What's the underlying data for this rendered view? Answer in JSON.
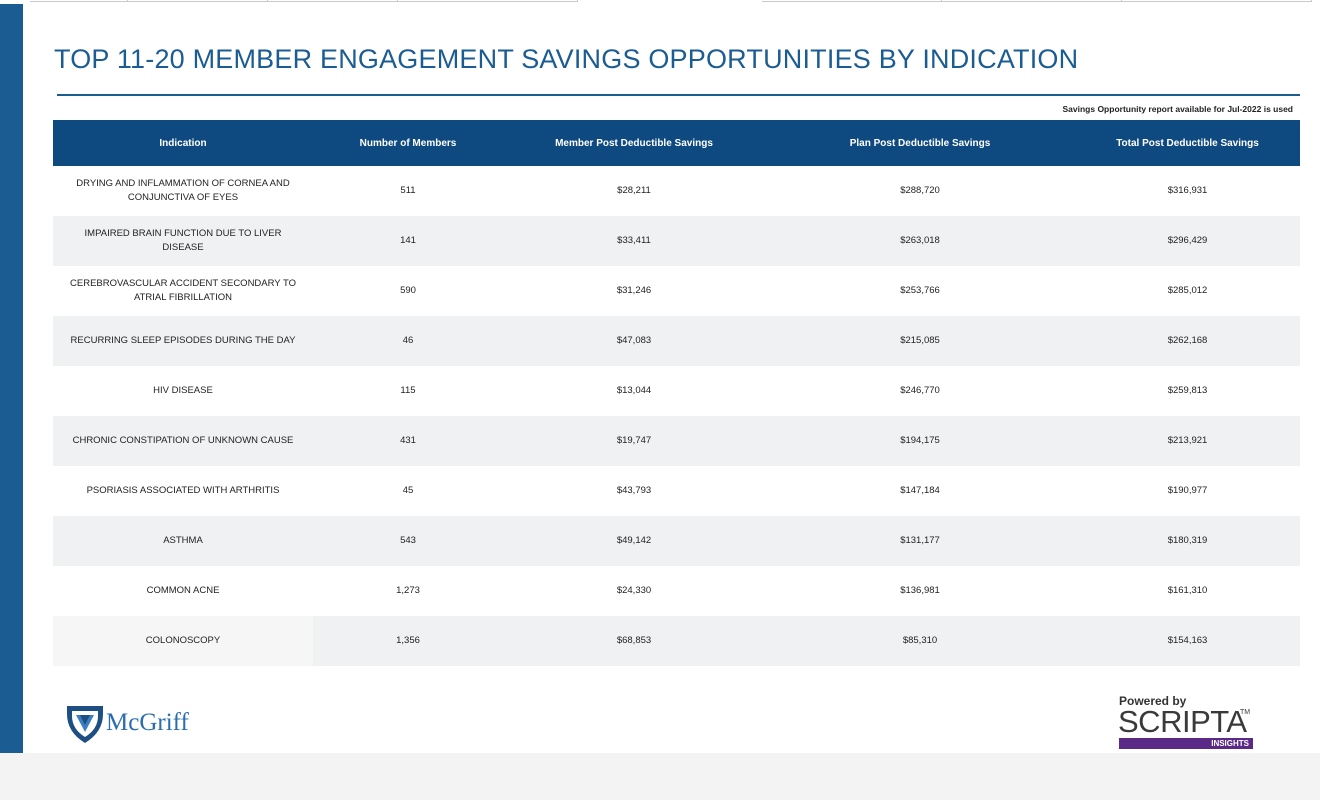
{
  "title": "TOP 11-20 MEMBER ENGAGEMENT SAVINGS OPPORTUNITIES BY INDICATION",
  "note": "Savings Opportunity report available for Jul-2022 is used",
  "colors": {
    "brand_blue": "#1b5c93",
    "header_bg": "#0e4a80",
    "scripta_purple": "#5b2a86"
  },
  "table": {
    "columns": [
      "Indication",
      "Number of Members",
      "Member Post Deductible Savings",
      "Plan Post Deductible Savings",
      "Total Post Deductible Savings"
    ],
    "rows": [
      [
        "DRYING AND INFLAMMATION OF CORNEA AND CONJUNCTIVA OF EYES",
        "511",
        "$28,211",
        "$288,720",
        "$316,931"
      ],
      [
        "IMPAIRED BRAIN FUNCTION DUE TO LIVER DISEASE",
        "141",
        "$33,411",
        "$263,018",
        "$296,429"
      ],
      [
        "CEREBROVASCULAR ACCIDENT SECONDARY TO ATRIAL FIBRILLATION",
        "590",
        "$31,246",
        "$253,766",
        "$285,012"
      ],
      [
        "RECURRING SLEEP EPISODES DURING THE DAY",
        "46",
        "$47,083",
        "$215,085",
        "$262,168"
      ],
      [
        "HIV DISEASE",
        "115",
        "$13,044",
        "$246,770",
        "$259,813"
      ],
      [
        "CHRONIC CONSTIPATION OF UNKNOWN CAUSE",
        "431",
        "$19,747",
        "$194,175",
        "$213,921"
      ],
      [
        "PSORIASIS ASSOCIATED WITH ARTHRITIS",
        "45",
        "$43,793",
        "$147,184",
        "$190,977"
      ],
      [
        "ASTHMA",
        "543",
        "$49,142",
        "$131,177",
        "$180,319"
      ],
      [
        "COMMON ACNE",
        "1,273",
        "$24,330",
        "$136,981",
        "$161,310"
      ],
      [
        "COLONOSCOPY",
        "1,356",
        "$68,853",
        "$85,310",
        "$154,163"
      ]
    ]
  },
  "logos": {
    "mcgriff": "McGriff",
    "powered_by": "Powered by",
    "scripta": "SCRIPTA",
    "scripta_tm": "TM",
    "insights": "INSIGHTS"
  }
}
